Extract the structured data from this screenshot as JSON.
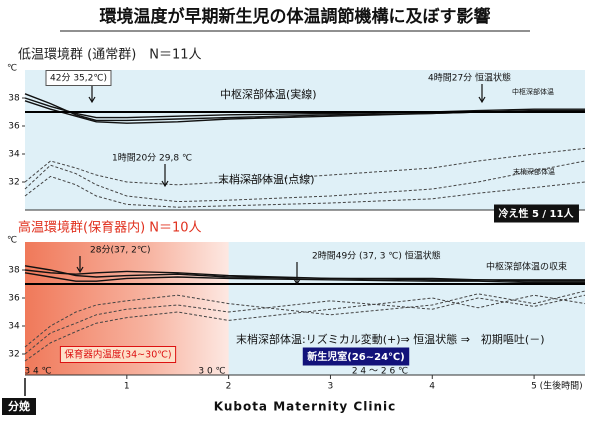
{
  "title": "環境温度が早期新生児の体温調節機構に及ぼす影響",
  "birth_label": "分娩",
  "credit": "Kubota Maternity Clinic",
  "chart_data": [
    {
      "type": "line",
      "title": "低温環境群 (通常群)　N＝11人",
      "title_color": "#222",
      "y_unit": "℃",
      "xlim": [
        0,
        5.5
      ],
      "ylim": [
        30,
        40
      ],
      "yticks": [
        32,
        34,
        36,
        38
      ],
      "hline": 37,
      "background": "#dff0f7",
      "annotations": [
        "42分 35,2℃)",
        "4時間27分 恒温状態",
        "中枢深部体温(実線)",
        "中枢深部体温",
        "1時間20分 29,8 ℃",
        "末梢深部体温(点線)",
        "末梢深部体温",
        "冷え性 5 / 11人"
      ],
      "x": [
        0,
        0.25,
        0.5,
        0.7,
        1,
        1.5,
        2,
        3,
        4,
        4.45,
        5,
        5.5
      ],
      "series": [
        {
          "color": "#111",
          "dashed": false,
          "values": [
            38.3,
            37.6,
            36.8,
            36.4,
            36.4,
            36.5,
            36.6,
            36.8,
            36.9,
            37.0,
            37.1,
            37.1
          ]
        },
        {
          "color": "#111",
          "dashed": false,
          "values": [
            38.0,
            37.4,
            36.9,
            36.6,
            36.6,
            36.7,
            36.8,
            36.9,
            37.0,
            37.1,
            37.2,
            37.2
          ]
        },
        {
          "color": "#111",
          "dashed": false,
          "values": [
            37.8,
            37.2,
            36.7,
            36.3,
            36.2,
            36.3,
            36.5,
            36.7,
            36.9,
            37.0,
            37.0,
            37.0
          ]
        },
        {
          "color": "#444",
          "dashed": true,
          "values": [
            31.5,
            33.2,
            32.6,
            31.8,
            31.0,
            30.6,
            30.7,
            31.0,
            31.5,
            32.0,
            32.8,
            33.5
          ]
        },
        {
          "color": "#444",
          "dashed": true,
          "values": [
            31.0,
            32.4,
            31.8,
            31.0,
            30.4,
            30.2,
            30.3,
            30.5,
            30.8,
            31.2,
            31.6,
            32.0
          ]
        },
        {
          "color": "#444",
          "dashed": true,
          "values": [
            32.0,
            33.5,
            33.0,
            32.5,
            32.0,
            31.8,
            32.0,
            32.5,
            33.0,
            33.5,
            34.0,
            34.4
          ]
        }
      ]
    },
    {
      "type": "line",
      "title": "高温環境群(保育器内) N＝10人",
      "title_color": "#e0301e",
      "y_unit": "℃",
      "xlim": [
        0,
        5.5
      ],
      "ylim": [
        30.5,
        40
      ],
      "yticks": [
        32,
        34,
        36,
        38
      ],
      "hline": 37,
      "xticks": [
        1,
        2,
        3,
        4,
        {
          "value": 5,
          "label": "5 (生後時間)"
        }
      ],
      "background": "#dff0f7",
      "annotations": [
        "28分(37, 2℃)",
        "2時間49分 (37, 3 ℃) 恒温状態",
        "中枢深部体温の収束",
        "保育器内温度(34~30℃)",
        "末梢深部体温:リズミカル変動(+)⇒ 恒温状態 ⇒　初期嘔吐(－)",
        "新生児室(26~24℃)",
        "3 4 ℃",
        "3 0 ℃",
        "2 4 ～ 2 6 ℃"
      ],
      "x": [
        0,
        0.25,
        0.5,
        0.7,
        1,
        1.5,
        2,
        3,
        4,
        4.45,
        5,
        5.5
      ],
      "series": [
        {
          "color": "#111",
          "dashed": false,
          "values": [
            38.3,
            38.0,
            37.6,
            37.5,
            37.6,
            37.7,
            37.5,
            37.4,
            37.3,
            37.3,
            37.2,
            37.2
          ]
        },
        {
          "color": "#111",
          "dashed": false,
          "values": [
            38.0,
            37.8,
            37.7,
            37.8,
            37.9,
            37.8,
            37.6,
            37.4,
            37.4,
            37.3,
            37.3,
            37.3
          ]
        },
        {
          "color": "#111",
          "dashed": false,
          "values": [
            37.8,
            37.5,
            37.2,
            37.2,
            37.4,
            37.5,
            37.4,
            37.3,
            37.2,
            37.2,
            37.1,
            37.1
          ]
        },
        {
          "color": "#444",
          "dashed": true,
          "values": [
            32.0,
            33.5,
            34.2,
            34.8,
            35.2,
            35.5,
            35.0,
            35.8,
            35.2,
            36.0,
            35.4,
            36.2
          ]
        },
        {
          "color": "#444",
          "dashed": true,
          "values": [
            31.5,
            32.8,
            33.6,
            34.2,
            34.6,
            35.0,
            34.4,
            35.2,
            36.0,
            35.3,
            36.2,
            35.6
          ]
        },
        {
          "color": "#444",
          "dashed": true,
          "values": [
            32.5,
            34.0,
            35.0,
            35.5,
            35.8,
            36.2,
            35.6,
            34.8,
            35.5,
            36.3,
            35.6,
            36.5
          ]
        }
      ]
    }
  ]
}
